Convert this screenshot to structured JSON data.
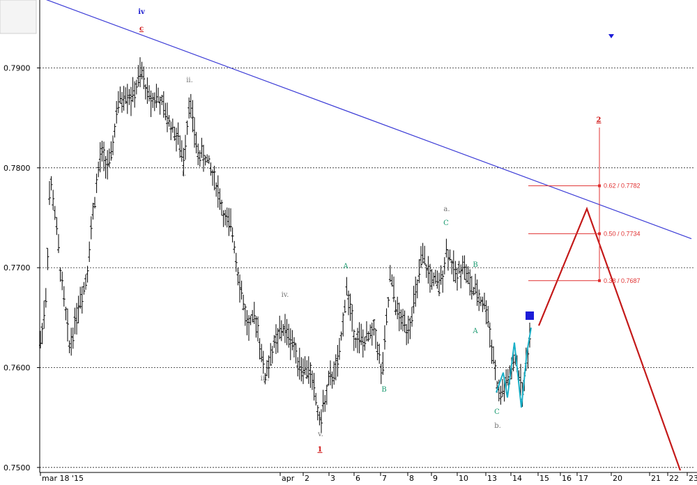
{
  "chart_data": {
    "type": "ohlc",
    "y_axis": {
      "ylim": [
        0.7495,
        0.7968
      ],
      "ticks": [
        0.75,
        0.76,
        0.77,
        0.78,
        0.79
      ],
      "tick_labels": [
        "0.7500",
        "0.7600",
        "0.7700",
        "0.7800",
        "0.7900"
      ],
      "grid": "dotted"
    },
    "x_axis": {
      "tick_labels": [
        "mar 18 '15",
        "apr",
        "2",
        "3",
        "6",
        "7",
        "8",
        "9",
        "10",
        "13",
        "14",
        "15",
        "16",
        "17",
        "20",
        "21",
        "22",
        "23"
      ]
    },
    "trendline": {
      "color": "#3a3ad6",
      "from_y": 0.797,
      "to_y": 0.7729
    },
    "wave_labels": [
      {
        "text": "iv",
        "color": "#1f1fd0"
      },
      {
        "text": "c",
        "color": "#d01818"
      },
      {
        "text": "ii.",
        "color": "#707070"
      },
      {
        "text": "i.",
        "color": "#707070"
      },
      {
        "text": "iv.",
        "color": "#707070"
      },
      {
        "text": "iii.",
        "color": "#707070"
      },
      {
        "text": "v.",
        "color": "#707070"
      },
      {
        "text": "1",
        "color": "#d01818"
      },
      {
        "text": "A",
        "color": "#1a9a70"
      },
      {
        "text": "B",
        "color": "#1a9a70"
      },
      {
        "text": "a.",
        "color": "#707070"
      },
      {
        "text": "C",
        "color": "#1a9a70"
      },
      {
        "text": "B",
        "color": "#1a9a70"
      },
      {
        "text": "A",
        "color": "#1a9a70"
      },
      {
        "text": "C",
        "color": "#1a9a70"
      },
      {
        "text": "b.",
        "color": "#707070"
      },
      {
        "text": "2",
        "color": "#d01818"
      }
    ],
    "fib_levels": [
      {
        "label": "0.62 / 0.7782",
        "value": 0.7782
      },
      {
        "label": "0.50 / 0.7734",
        "value": 0.7734
      },
      {
        "label": "0.38 / 0.7687",
        "value": 0.7687
      }
    ],
    "projection": {
      "color": "#c41a1a",
      "path_values": [
        0.7642,
        0.7759,
        0.7497
      ]
    },
    "colors": {
      "bars": "#000000",
      "recent_wave": "#1ab0c8",
      "marker": "#1c1cd8",
      "fib": "#e03030"
    }
  }
}
